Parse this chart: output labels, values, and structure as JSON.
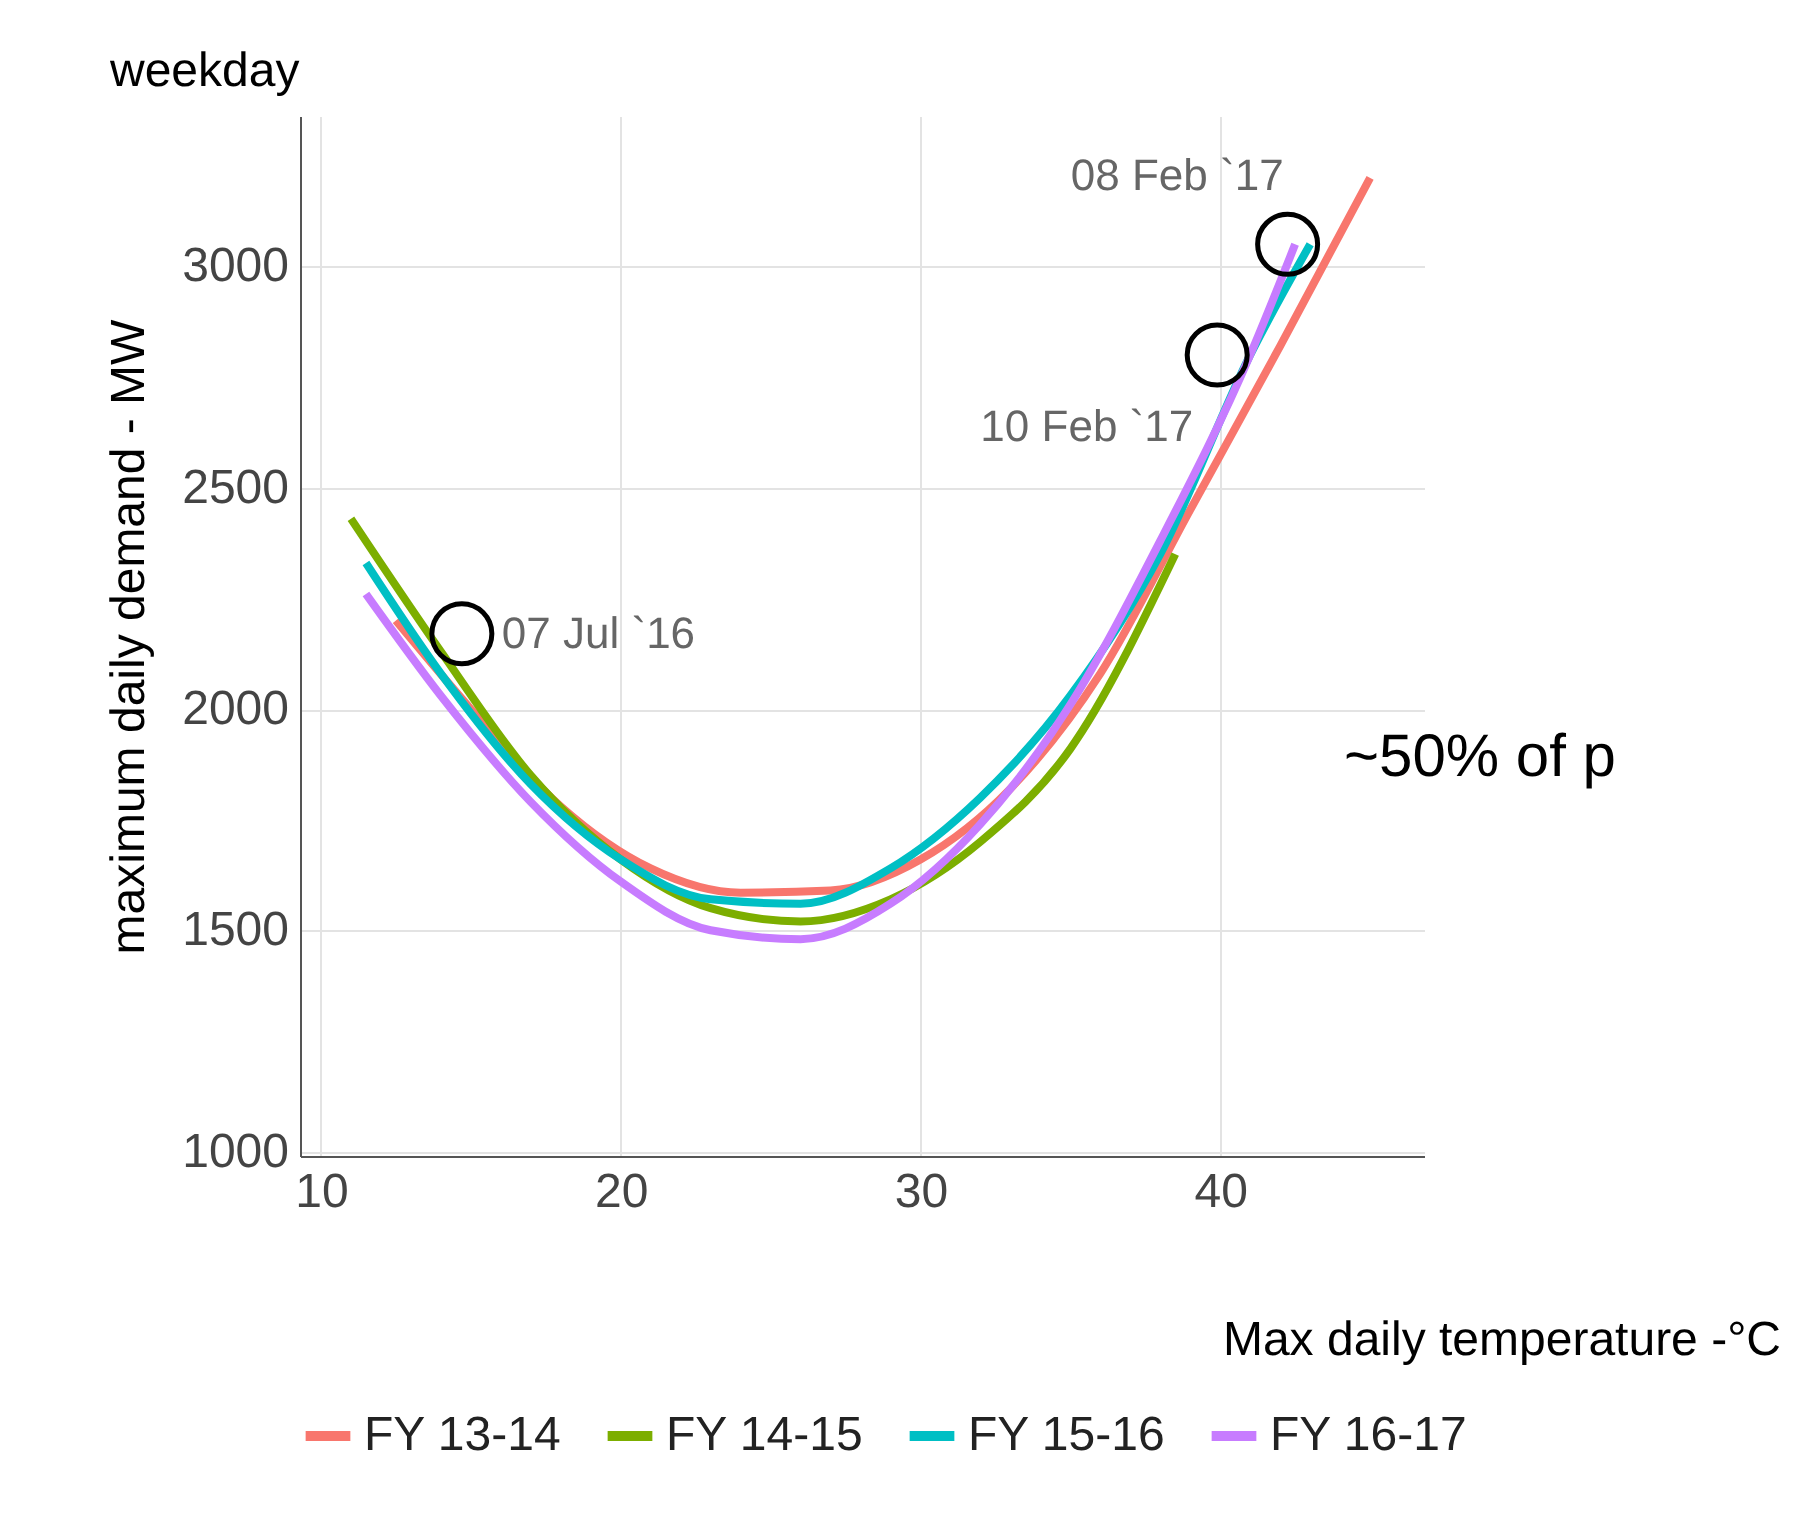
{
  "chart_data": {
    "type": "line",
    "title": "weekday",
    "xlabel": "Max daily temperature -°C",
    "ylabel": "maximum daily demand - MW",
    "xlim": [
      9.3,
      46.8
    ],
    "ylim": [
      990,
      3340
    ],
    "xticks": [
      10,
      20,
      30,
      40
    ],
    "yticks": [
      1000,
      1500,
      2000,
      2500,
      3000
    ],
    "grid": true,
    "legend": "bottom",
    "series": [
      {
        "name": "FY 13-14",
        "color": "#f8766d",
        "x": [
          12.5,
          15,
          18,
          21,
          24,
          27,
          30,
          33,
          36,
          39,
          42,
          45
        ],
        "values": [
          2200,
          2000,
          1780,
          1640,
          1585,
          1590,
          1660,
          1820,
          2080,
          2450,
          2820,
          3200
        ]
      },
      {
        "name": "FY 14-15",
        "color": "#7cae00",
        "x": [
          11,
          14,
          17,
          20,
          23,
          26,
          29,
          32,
          35,
          38.5
        ],
        "values": [
          2430,
          2130,
          1850,
          1660,
          1550,
          1520,
          1570,
          1700,
          1910,
          2350
        ]
      },
      {
        "name": "FY 15-16",
        "color": "#00bfc4",
        "x": [
          11.5,
          14,
          17,
          20,
          23,
          26,
          29,
          32,
          35,
          38,
          41,
          43
        ],
        "values": [
          2330,
          2080,
          1830,
          1660,
          1570,
          1560,
          1640,
          1800,
          2030,
          2350,
          2800,
          3050
        ]
      },
      {
        "name": "FY 16-17",
        "color": "#c77cff",
        "x": [
          11.5,
          14,
          17,
          20,
          23,
          26,
          29,
          32,
          35,
          38,
          41,
          42.5
        ],
        "values": [
          2260,
          2030,
          1790,
          1610,
          1500,
          1480,
          1560,
          1740,
          2010,
          2380,
          2800,
          3050
        ]
      }
    ],
    "annotations": [
      {
        "text": "08 Feb `17",
        "x": 42.25,
        "y": 3050
      },
      {
        "text": "10 Feb `17",
        "x": 39.9,
        "y": 2800
      },
      {
        "text": "07 Jul `16",
        "x": 14.7,
        "y": 2170
      },
      "~50% of p"
    ]
  }
}
